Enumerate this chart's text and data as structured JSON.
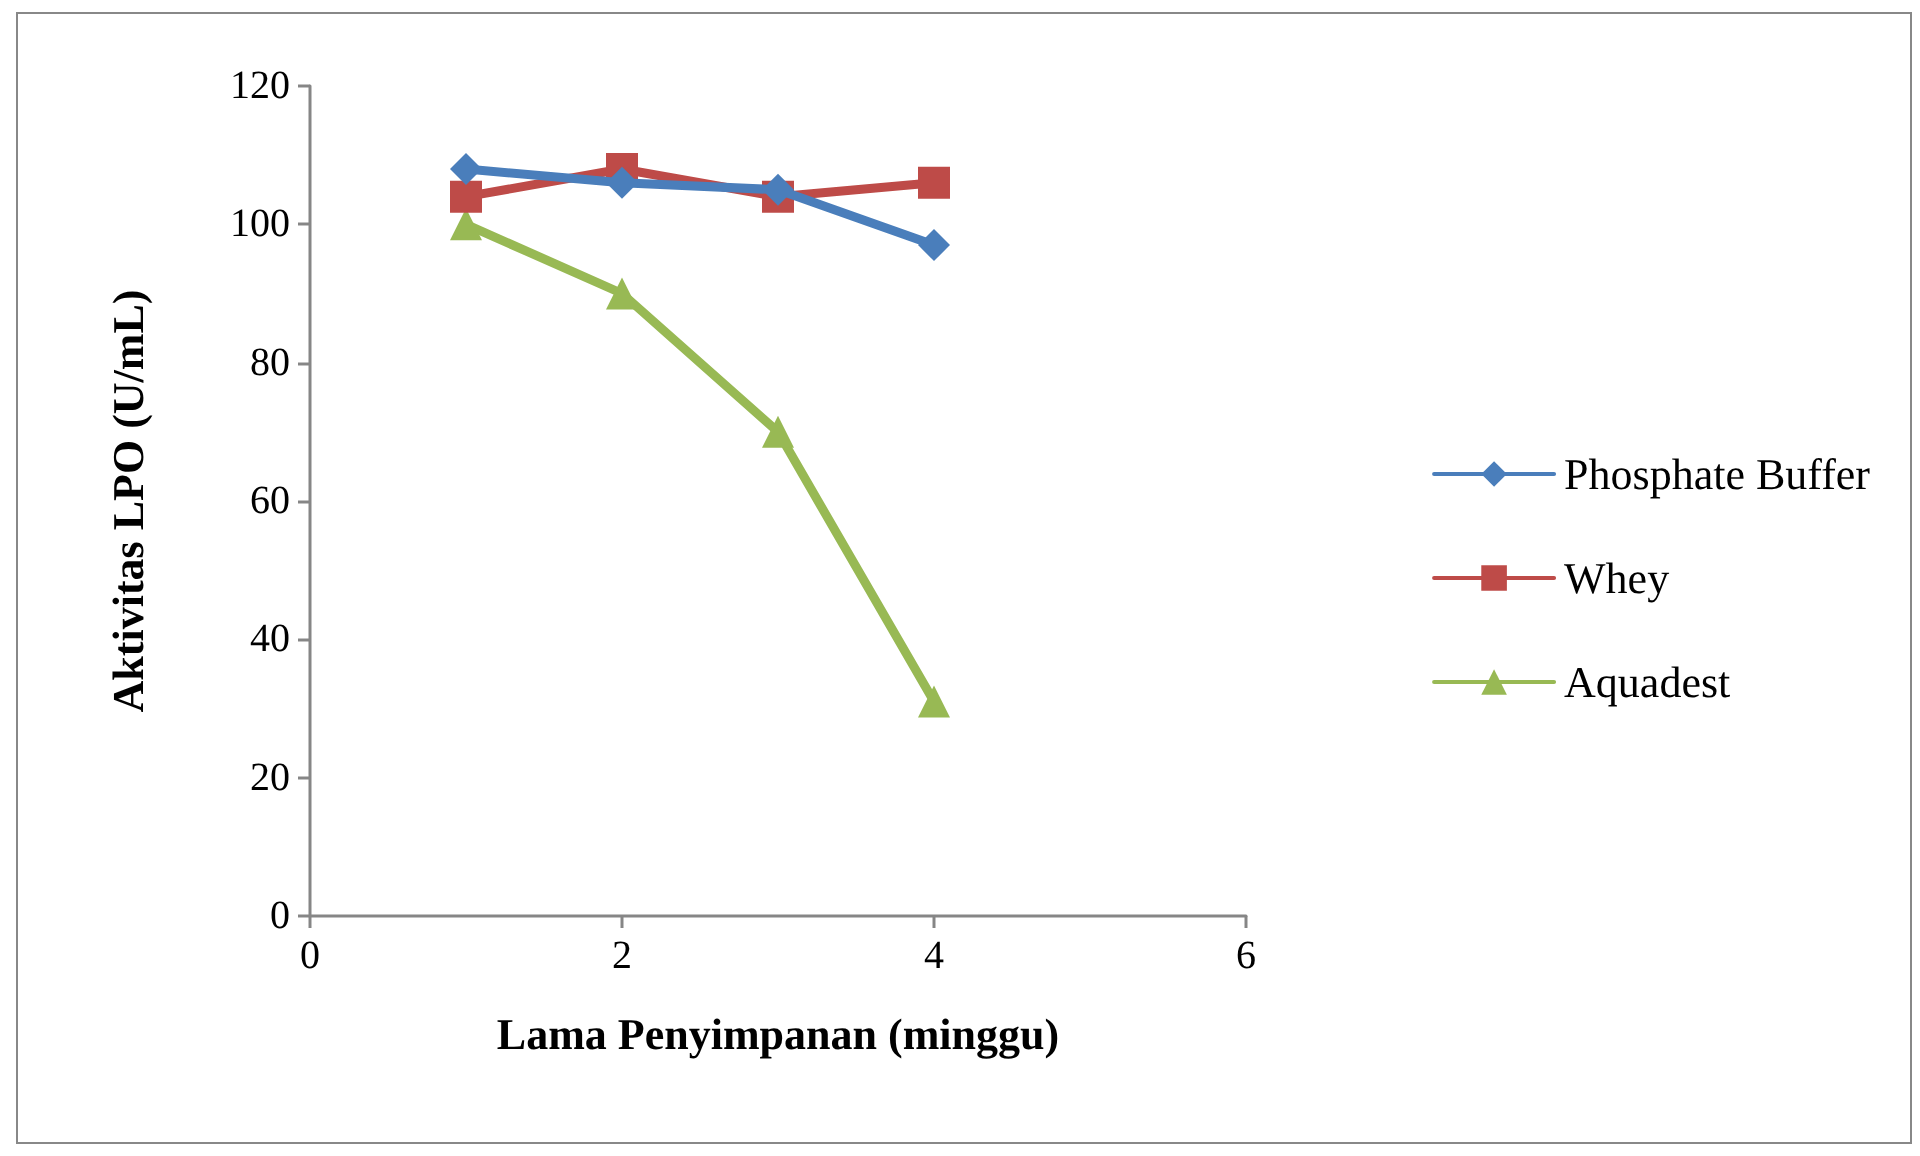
{
  "chart_data": {
    "type": "line",
    "xlabel": "Lama Penyimpanan (minggu)",
    "ylabel": "Aktivitas LPO (U/mL)",
    "x": [
      1,
      2,
      3,
      4
    ],
    "series": [
      {
        "name": "Phosphate Buffer",
        "color": "#4a7ebb",
        "marker": "diamond",
        "values": [
          108,
          106,
          105,
          97
        ]
      },
      {
        "name": "Whey",
        "color": "#be4b48",
        "marker": "square",
        "values": [
          104,
          108,
          104,
          106
        ]
      },
      {
        "name": "Aquadest",
        "color": "#98b954",
        "marker": "triangle",
        "values": [
          100,
          90,
          70,
          31
        ]
      }
    ],
    "xlim": [
      0,
      6
    ],
    "xticks": [
      0,
      2,
      4,
      6
    ],
    "ylim": [
      0,
      120
    ],
    "yticks": [
      0,
      20,
      40,
      60,
      80,
      100,
      120
    ],
    "grid": false,
    "legend": "right",
    "line_style": "solid"
  }
}
